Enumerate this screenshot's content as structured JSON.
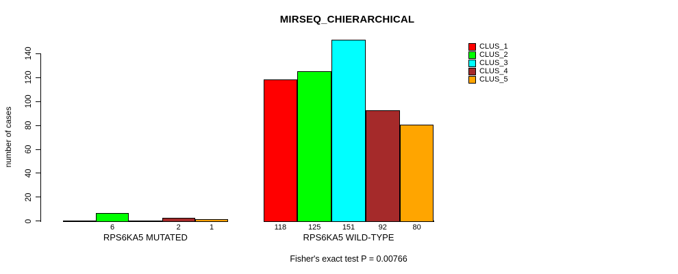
{
  "chart_data": {
    "type": "bar",
    "title": "MIRSEQ_CHIERARCHICAL",
    "ylabel": "number of cases",
    "xlabel": "",
    "ylim": [
      0,
      155
    ],
    "yticks": [
      0,
      20,
      40,
      60,
      80,
      100,
      120,
      140
    ],
    "grid": false,
    "legend_position": "top-right",
    "series": [
      "CLUS_1",
      "CLUS_2",
      "CLUS_3",
      "CLUS_4",
      "CLUS_5"
    ],
    "series_colors": [
      "#FF0000",
      "#00FF00",
      "#00FFFF",
      "#A52A2A",
      "#FFA500"
    ],
    "groups": [
      {
        "label": "RPS6KA5 MUTATED",
        "values": [
          0,
          6,
          0,
          2,
          1
        ],
        "bar_labels": [
          "",
          "6",
          "",
          "2",
          "1"
        ]
      },
      {
        "label": "RPS6KA5 WILD-TYPE",
        "values": [
          118,
          125,
          151,
          92,
          80
        ],
        "bar_labels": [
          "118",
          "125",
          "151",
          "92",
          "80"
        ]
      }
    ],
    "annotation": "Fisher's exact test P = 0.00766"
  }
}
